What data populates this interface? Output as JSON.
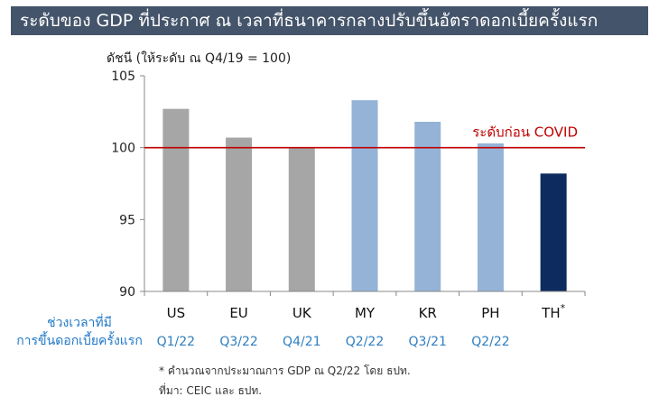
{
  "header": {
    "title": "ระดับของ GDP ที่ประกาศ ณ เวลาที่ธนาคารกลางปรับขึ้นอัตราดอกเบี้ยครั้งแรก"
  },
  "chart_data": {
    "type": "bar",
    "title": "ระดับของ GDP ที่ประกาศ ณ เวลาที่ธนาคารกลางปรับขึ้นอัตราดอกเบี้ยครั้งแรก",
    "ylabel": "ดัชนี (ให้ระดับ ณ Q4/19 = 100)",
    "ylim": [
      90,
      105
    ],
    "yticks": [
      90,
      95,
      100,
      105
    ],
    "categories": [
      "US",
      "EU",
      "UK",
      "MY",
      "KR",
      "PH",
      "TH"
    ],
    "category_superscripts": [
      "",
      "",
      "",
      "",
      "",
      "",
      "*"
    ],
    "periods": [
      "Q1/22",
      "Q3/22",
      "Q4/21",
      "Q2/22",
      "Q3/21",
      "Q2/22",
      ""
    ],
    "values": [
      102.7,
      100.7,
      100.0,
      103.3,
      101.8,
      100.3,
      98.2
    ],
    "bar_colors": [
      "#a6a6a6",
      "#a6a6a6",
      "#a6a6a6",
      "#95b3d7",
      "#95b3d7",
      "#95b3d7",
      "#0d2b5e"
    ],
    "reference_line": {
      "value": 100,
      "label": "ระดับก่อน COVID",
      "color": "#c00000"
    },
    "period_title_line1": "ช่วงเวลาที่มี",
    "period_title_line2": "การขึ้นดอกเบี้ยครั้งแรก",
    "grid": false,
    "legend": "none"
  },
  "footnotes": {
    "note": "* คำนวณจากประมาณการ GDP ณ Q2/22 โดย ธปท.",
    "source": "ที่มา: CEIC และ ธปท."
  }
}
